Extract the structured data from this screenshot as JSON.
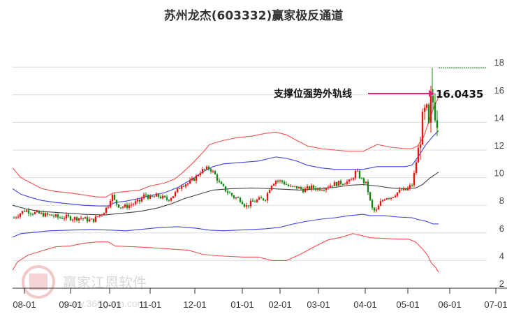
{
  "title": "苏州龙杰(603332)赢家极反通道",
  "watermark": {
    "brand": "赢家江恩软件",
    "url": "www.360gann.com",
    "seal": [
      "江",
      "赢",
      "恩",
      "家"
    ]
  },
  "colors": {
    "up": "#ee1111",
    "down": "#118811",
    "outer_band": "#ee3333",
    "inner_band": "#2222dd",
    "mid_line": "#222222",
    "annotation_arrow": "#e0207a",
    "grid": "#dddddd",
    "resistance": "#118811"
  },
  "annotation": {
    "label": "支撑位强势外轨线",
    "value": "16.0435"
  },
  "chart_data": {
    "type": "line",
    "title": "苏州龙杰(603332)赢家极反通道",
    "xlabel": "",
    "ylabel": "",
    "ylim": [
      2,
      18
    ],
    "grid": true,
    "legend": "none",
    "yticks": [
      2,
      4,
      6,
      8,
      10,
      12,
      14,
      16,
      18
    ],
    "xticks": [
      "08-01",
      "09-01",
      "10-01",
      "11-01",
      "12-01",
      "01-01",
      "02-01",
      "03-01",
      "04-01",
      "05-01",
      "06-01",
      "07-01"
    ],
    "xtick_pos": [
      35,
      101,
      157,
      215,
      279,
      347,
      401,
      456,
      523,
      584,
      644,
      710
    ],
    "annotations": [
      {
        "text": "支撑位强势外轨线",
        "value": 16.0435
      }
    ],
    "resistance_level": 17.95,
    "series": [
      {
        "name": "upper_outer",
        "color": "#ee3333",
        "points": [
          [
            18,
            10.7
          ],
          [
            30,
            10.0
          ],
          [
            45,
            9.6
          ],
          [
            60,
            9.2
          ],
          [
            80,
            9.0
          ],
          [
            100,
            8.9
          ],
          [
            120,
            8.75
          ],
          [
            140,
            8.6
          ],
          [
            152,
            8.6
          ],
          [
            162,
            8.9
          ],
          [
            180,
            9.0
          ],
          [
            200,
            9.1
          ],
          [
            215,
            9.4
          ],
          [
            235,
            9.6
          ],
          [
            250,
            9.9
          ],
          [
            260,
            10.3
          ],
          [
            275,
            11.0
          ],
          [
            290,
            11.8
          ],
          [
            300,
            12.4
          ],
          [
            320,
            12.7
          ],
          [
            340,
            12.9
          ],
          [
            360,
            13.0
          ],
          [
            380,
            13.2
          ],
          [
            395,
            13.3
          ],
          [
            410,
            13.1
          ],
          [
            425,
            12.7
          ],
          [
            440,
            12.3
          ],
          [
            460,
            12.1
          ],
          [
            480,
            12.0
          ],
          [
            500,
            11.9
          ],
          [
            520,
            11.9
          ],
          [
            540,
            12.4
          ],
          [
            560,
            12.2
          ],
          [
            580,
            12.1
          ],
          [
            590,
            12.1
          ],
          [
            598,
            12.3
          ],
          [
            607,
            13.0
          ],
          [
            615,
            14.2
          ],
          [
            622,
            15.2
          ],
          [
            628,
            15.8
          ]
        ]
      },
      {
        "name": "upper_inner",
        "color": "#2222dd",
        "points": [
          [
            18,
            9.2
          ],
          [
            30,
            8.8
          ],
          [
            45,
            8.55
          ],
          [
            60,
            8.35
          ],
          [
            80,
            8.2
          ],
          [
            100,
            8.1
          ],
          [
            120,
            8.0
          ],
          [
            140,
            7.95
          ],
          [
            155,
            7.95
          ],
          [
            165,
            8.2
          ],
          [
            180,
            8.3
          ],
          [
            200,
            8.5
          ],
          [
            215,
            8.7
          ],
          [
            235,
            8.9
          ],
          [
            255,
            9.3
          ],
          [
            275,
            9.9
          ],
          [
            290,
            10.4
          ],
          [
            305,
            10.8
          ],
          [
            320,
            11.0
          ],
          [
            345,
            11.1
          ],
          [
            370,
            11.2
          ],
          [
            395,
            11.5
          ],
          [
            410,
            11.4
          ],
          [
            425,
            11.2
          ],
          [
            440,
            10.9
          ],
          [
            460,
            10.7
          ],
          [
            480,
            10.6
          ],
          [
            500,
            10.6
          ],
          [
            520,
            10.6
          ],
          [
            540,
            10.8
          ],
          [
            560,
            10.8
          ],
          [
            580,
            10.8
          ],
          [
            590,
            10.9
          ],
          [
            600,
            11.6
          ],
          [
            610,
            12.4
          ],
          [
            620,
            13.0
          ],
          [
            628,
            13.4
          ]
        ]
      },
      {
        "name": "middle",
        "color": "#222222",
        "points": [
          [
            18,
            8.0
          ],
          [
            40,
            7.7
          ],
          [
            60,
            7.55
          ],
          [
            90,
            7.45
          ],
          [
            120,
            7.35
          ],
          [
            150,
            7.3
          ],
          [
            170,
            7.4
          ],
          [
            200,
            7.55
          ],
          [
            225,
            7.8
          ],
          [
            245,
            8.1
          ],
          [
            265,
            8.5
          ],
          [
            285,
            8.8
          ],
          [
            305,
            9.1
          ],
          [
            330,
            9.2
          ],
          [
            360,
            9.25
          ],
          [
            390,
            9.2
          ],
          [
            410,
            9.15
          ],
          [
            430,
            9.1
          ],
          [
            455,
            9.2
          ],
          [
            480,
            9.3
          ],
          [
            500,
            9.45
          ],
          [
            520,
            9.5
          ],
          [
            540,
            9.4
          ],
          [
            560,
            9.25
          ],
          [
            580,
            9.2
          ],
          [
            595,
            9.25
          ],
          [
            605,
            9.5
          ],
          [
            615,
            9.95
          ],
          [
            628,
            10.4
          ]
        ]
      },
      {
        "name": "lower_inner",
        "color": "#2222dd",
        "points": [
          [
            18,
            5.7
          ],
          [
            30,
            5.95
          ],
          [
            50,
            6.05
          ],
          [
            70,
            6.15
          ],
          [
            100,
            6.2
          ],
          [
            130,
            6.25
          ],
          [
            160,
            6.2
          ],
          [
            180,
            6.15
          ],
          [
            200,
            6.25
          ],
          [
            230,
            6.4
          ],
          [
            255,
            6.45
          ],
          [
            280,
            6.35
          ],
          [
            300,
            6.2
          ],
          [
            320,
            6.15
          ],
          [
            340,
            6.2
          ],
          [
            360,
            6.25
          ],
          [
            380,
            6.3
          ],
          [
            400,
            6.4
          ],
          [
            420,
            6.65
          ],
          [
            440,
            6.85
          ],
          [
            460,
            7.0
          ],
          [
            480,
            7.1
          ],
          [
            500,
            7.25
          ],
          [
            520,
            7.35
          ],
          [
            530,
            7.25
          ],
          [
            550,
            7.25
          ],
          [
            570,
            7.15
          ],
          [
            590,
            7.1
          ],
          [
            600,
            6.95
          ],
          [
            610,
            6.85
          ],
          [
            620,
            6.65
          ],
          [
            628,
            6.65
          ]
        ]
      },
      {
        "name": "lower_outer",
        "color": "#ee3333",
        "points": [
          [
            18,
            3.3
          ],
          [
            25,
            3.9
          ],
          [
            40,
            4.4
          ],
          [
            60,
            4.7
          ],
          [
            80,
            5.0
          ],
          [
            100,
            5.05
          ],
          [
            120,
            5.25
          ],
          [
            140,
            5.35
          ],
          [
            155,
            5.35
          ],
          [
            165,
            5.05
          ],
          [
            190,
            5.0
          ],
          [
            210,
            4.95
          ],
          [
            240,
            4.85
          ],
          [
            270,
            4.75
          ],
          [
            290,
            4.45
          ],
          [
            310,
            4.35
          ],
          [
            330,
            4.3
          ],
          [
            350,
            4.25
          ],
          [
            370,
            4.25
          ],
          [
            390,
            4.0
          ],
          [
            410,
            4.0
          ],
          [
            430,
            4.45
          ],
          [
            450,
            5.0
          ],
          [
            470,
            5.5
          ],
          [
            490,
            5.7
          ],
          [
            505,
            5.95
          ],
          [
            515,
            5.85
          ],
          [
            530,
            5.65
          ],
          [
            550,
            5.6
          ],
          [
            570,
            5.55
          ],
          [
            585,
            5.55
          ],
          [
            595,
            5.35
          ],
          [
            605,
            4.85
          ],
          [
            612,
            4.4
          ],
          [
            618,
            3.8
          ],
          [
            624,
            3.5
          ],
          [
            628,
            3.15
          ]
        ]
      },
      {
        "name": "price_close_trace",
        "color": "#ee1111",
        "points": [
          [
            20,
            7.1
          ],
          [
            28,
            7.4
          ],
          [
            36,
            7.65
          ],
          [
            44,
            7.5
          ],
          [
            55,
            7.4
          ],
          [
            65,
            7.3
          ],
          [
            75,
            7.25
          ],
          [
            85,
            7.1
          ],
          [
            95,
            7.15
          ],
          [
            105,
            7.05
          ],
          [
            115,
            7.1
          ],
          [
            125,
            6.95
          ],
          [
            133,
            6.9
          ],
          [
            140,
            7.2
          ],
          [
            148,
            7.5
          ],
          [
            155,
            8.0
          ],
          [
            160,
            8.8
          ],
          [
            165,
            8.2
          ],
          [
            172,
            7.9
          ],
          [
            180,
            7.9
          ],
          [
            190,
            8.1
          ],
          [
            200,
            8.3
          ],
          [
            208,
            8.8
          ],
          [
            215,
            8.5
          ],
          [
            225,
            8.7
          ],
          [
            240,
            8.4
          ],
          [
            250,
            8.8
          ],
          [
            260,
            9.5
          ],
          [
            270,
            9.6
          ],
          [
            280,
            10.0
          ],
          [
            288,
            10.5
          ],
          [
            295,
            10.6
          ],
          [
            300,
            10.7
          ],
          [
            308,
            10.2
          ],
          [
            315,
            9.5
          ],
          [
            325,
            9.0
          ],
          [
            335,
            8.6
          ],
          [
            345,
            8.4
          ],
          [
            352,
            7.9
          ],
          [
            360,
            8.2
          ],
          [
            370,
            8.4
          ],
          [
            380,
            8.5
          ],
          [
            388,
            9.5
          ],
          [
            395,
            9.8
          ],
          [
            405,
            9.7
          ],
          [
            415,
            9.3
          ],
          [
            425,
            9.3
          ],
          [
            435,
            9.1
          ],
          [
            445,
            9.3
          ],
          [
            455,
            9.2
          ],
          [
            465,
            9.3
          ],
          [
            475,
            9.5
          ],
          [
            485,
            9.6
          ],
          [
            495,
            9.7
          ],
          [
            502,
            9.7
          ],
          [
            510,
            10.5
          ],
          [
            517,
            9.9
          ],
          [
            525,
            9.5
          ],
          [
            532,
            7.8
          ],
          [
            538,
            7.5
          ],
          [
            545,
            8.2
          ],
          [
            552,
            8.6
          ],
          [
            560,
            8.6
          ],
          [
            568,
            8.9
          ],
          [
            575,
            9.1
          ],
          [
            582,
            9.1
          ],
          [
            590,
            9.5
          ],
          [
            594,
            10.5
          ],
          [
            605,
            14.0
          ],
          [
            610,
            15.0
          ],
          [
            614,
            13.5
          ],
          [
            618,
            16.0
          ],
          [
            622,
            15.0
          ],
          [
            627,
            14.0
          ]
        ]
      }
    ]
  }
}
